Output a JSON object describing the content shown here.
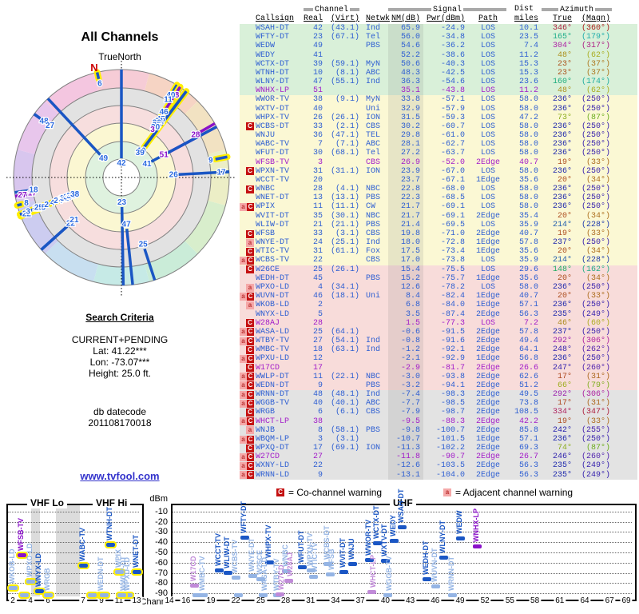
{
  "radar": {
    "title": "All Channels",
    "orientation_label": "TrueNorth",
    "north_marker": "N",
    "ring_hues": [
      "#f6ccd6",
      "#f6d4c4",
      "#f2e2c2",
      "#eceec6",
      "#d8eecc",
      "#caecd8",
      "#c6eae6",
      "#c8dff0",
      "#ccccf0",
      "#d8c6ee",
      "#e8c6ec",
      "#f4c6e0"
    ],
    "ring_fills": [
      "#e2e2e2",
      "#f7dede",
      "#fbf7d2",
      "#dff2df",
      "#ffffff"
    ]
  },
  "criteria": {
    "heading": "Search Criteria",
    "mode": "CURRENT+PENDING",
    "lat": "Lat: 41.22***",
    "lon": "Lon: -73.07***",
    "height": "Height: 25.0 ft.",
    "db_label": "db datecode",
    "db_code": "201108170018"
  },
  "link_text": "www.tvfool.com",
  "table_header": {
    "channel_group": "Channel",
    "signal_group": "Signal",
    "dist_group": "Dist",
    "azimuth_group": "Azimuth",
    "callsign": "Callsign",
    "real": "Real",
    "virt": "(Virt)",
    "netwk": "Netwk",
    "nm": "NM(dB)",
    "pwr": "Pwr(dBm)",
    "path": "Path",
    "miles": "miles",
    "true": "True",
    "magn": "(Magn)"
  },
  "legend": {
    "co_badge": "C",
    "co_text": "= Co-channel warning",
    "adj_badge": "a",
    "adj_text": "= Adjacent channel warning"
  },
  "colors": {
    "blue_text": "#2d5ed2",
    "analog_text": "#a21cc9",
    "bar_dark": "#1a56c4",
    "bar_light": "#94b4e4",
    "bar_analog_dark": "#8a11c9",
    "bar_analog_light": "#c08ad8",
    "highlight_yellow": "#ffee00",
    "row_green": "#d9f0d9",
    "row_yellow": "#fbf8d4",
    "row_pink": "#f8dcda",
    "row_gray": "#e3e3e3",
    "marker_co_bg": "#c41111",
    "marker_adj_bg": "#f5a8a8"
  },
  "chart_data": {
    "type": "table",
    "columns": [
      "callsign",
      "real_ch",
      "virt_ch",
      "network",
      "nm_db",
      "pwr_dbm",
      "path",
      "dist_miles",
      "azimuth_true_deg",
      "azimuth_magn_deg",
      "warning_marker",
      "is_analog",
      "signal_band"
    ],
    "stations": [
      [
        "WSAH-DT",
        42,
        "(43.1)",
        "Ind",
        "65.9",
        "-24.9",
        "LOS",
        "10.1",
        346,
        360,
        "",
        0,
        "green"
      ],
      [
        "WFTY-DT",
        23,
        "(67.1)",
        "Tel",
        "56.0",
        "-34.8",
        "LOS",
        "23.5",
        165,
        179,
        "",
        0,
        "green"
      ],
      [
        "WEDW",
        49,
        "",
        "PBS",
        "54.6",
        "-36.2",
        "LOS",
        "7.4",
        304,
        317,
        "",
        0,
        "green"
      ],
      [
        "WEDY",
        41,
        "",
        "",
        "52.2",
        "-38.6",
        "LOS",
        "11.2",
        48,
        62,
        "",
        0,
        "green"
      ],
      [
        "WCTX-DT",
        39,
        "(59.1)",
        "MyN",
        "50.6",
        "-40.3",
        "LOS",
        "15.3",
        23,
        37,
        "",
        0,
        "green"
      ],
      [
        "WTNH-DT",
        10,
        "(8.1)",
        "ABC",
        "48.3",
        "-42.5",
        "LOS",
        "15.3",
        23,
        37,
        "",
        0,
        "green"
      ],
      [
        "WLNY-DT",
        47,
        "(55.1)",
        "Ind",
        "36.3",
        "-54.6",
        "LOS",
        "23.6",
        160,
        174,
        "",
        0,
        "green"
      ],
      [
        "WNHX-LP",
        51,
        "",
        "",
        "35.1",
        "-43.8",
        "LOS",
        "11.2",
        48,
        62,
        "",
        1,
        "green"
      ],
      [
        "WWOR-TV",
        38,
        "(9.1)",
        "MyN",
        "33.8",
        "-57.1",
        "LOS",
        "58.0",
        236,
        250,
        "",
        0,
        "yellow"
      ],
      [
        "WXTV-DT",
        40,
        "",
        "Uni",
        "32.9",
        "-57.9",
        "LOS",
        "58.0",
        236,
        250,
        "",
        0,
        "yellow"
      ],
      [
        "WHPX-TV",
        26,
        "(26.1)",
        "ION",
        "31.5",
        "-59.3",
        "LOS",
        "47.2",
        73,
        87,
        "",
        0,
        "yellow"
      ],
      [
        "WCBS-DT",
        33,
        "(2.1)",
        "CBS",
        "30.2",
        "-60.7",
        "LOS",
        "58.0",
        236,
        250,
        "C",
        0,
        "yellow"
      ],
      [
        "WNJU",
        36,
        "(47.1)",
        "TEL",
        "29.8",
        "-61.0",
        "LOS",
        "58.0",
        236,
        250,
        "",
        0,
        "yellow"
      ],
      [
        "WABC-TV",
        7,
        "(7.1)",
        "ABC",
        "28.1",
        "-62.7",
        "LOS",
        "58.0",
        236,
        250,
        "",
        0,
        "yellow"
      ],
      [
        "WFUT-DT",
        30,
        "(68.1)",
        "Tel",
        "27.2",
        "-63.7",
        "LOS",
        "58.0",
        236,
        250,
        "",
        0,
        "yellow"
      ],
      [
        "WFSB-TV",
        3,
        "",
        "CBS",
        "26.9",
        "-52.0",
        "2Edge",
        "40.7",
        19,
        33,
        "",
        1,
        "yellow"
      ],
      [
        "WPXN-TV",
        31,
        "(31.1)",
        "ION",
        "23.9",
        "-67.0",
        "LOS",
        "58.0",
        236,
        250,
        "C",
        0,
        "yellow"
      ],
      [
        "WCCT-TV",
        20,
        "",
        "",
        "23.7",
        "-67.1",
        "1Edge",
        "35.6",
        20,
        34,
        "",
        0,
        "yellow"
      ],
      [
        "WNBC",
        28,
        "(4.1)",
        "NBC",
        "22.8",
        "-68.0",
        "LOS",
        "58.0",
        236,
        250,
        "C",
        0,
        "yellow"
      ],
      [
        "WNET-DT",
        13,
        "(13.1)",
        "PBS",
        "22.3",
        "-68.5",
        "LOS",
        "58.0",
        236,
        250,
        "",
        0,
        "yellow"
      ],
      [
        "WPIX",
        11,
        "(11.1)",
        "CW",
        "21.7",
        "-69.1",
        "LOS",
        "58.0",
        236,
        250,
        "aC",
        0,
        "yellow"
      ],
      [
        "WVIT-DT",
        35,
        "(30.1)",
        "NBC",
        "21.7",
        "-69.1",
        "2Edge",
        "35.4",
        20,
        34,
        "",
        0,
        "yellow"
      ],
      [
        "WLIW-DT",
        21,
        "(21.1)",
        "PBS",
        "21.4",
        "-69.5",
        "LOS",
        "35.9",
        214,
        228,
        "",
        0,
        "yellow"
      ],
      [
        "WFSB",
        33,
        "(3.1)",
        "CBS",
        "19.8",
        "-71.0",
        "2Edge",
        "40.7",
        19,
        33,
        "C",
        0,
        "yellow"
      ],
      [
        "WNYE-DT",
        24,
        "(25.1)",
        "Ind",
        "18.0",
        "-72.8",
        "1Edge",
        "57.8",
        237,
        250,
        "a",
        0,
        "yellow"
      ],
      [
        "WTIC-TV",
        31,
        "(61.1)",
        "Fox",
        "17.5",
        "-73.4",
        "1Edge",
        "35.6",
        20,
        34,
        "C",
        0,
        "yellow"
      ],
      [
        "WCBS-TV",
        22,
        "",
        "CBS",
        "17.0",
        "-73.8",
        "LOS",
        "35.9",
        214,
        228,
        "aC",
        0,
        "yellow"
      ],
      [
        "W26CE",
        25,
        "(26.1)",
        "",
        "15.4",
        "-75.5",
        "LOS",
        "29.6",
        148,
        162,
        "C",
        0,
        "pink"
      ],
      [
        "WEDH-DT",
        45,
        "",
        "PBS",
        "15.2",
        "-75.7",
        "1Edge",
        "35.6",
        20,
        34,
        "",
        0,
        "pink"
      ],
      [
        "WPXO-LD",
        4,
        "(34.1)",
        "",
        "12.6",
        "-78.2",
        "LOS",
        "58.0",
        236,
        250,
        "a",
        0,
        "pink"
      ],
      [
        "WUVN-DT",
        46,
        "(18.1)",
        "Uni",
        "8.4",
        "-82.4",
        "1Edge",
        "40.7",
        20,
        33,
        "aC",
        0,
        "pink"
      ],
      [
        "WKOB-LD",
        2,
        "",
        "",
        "6.8",
        "-84.0",
        "1Edge",
        "57.1",
        236,
        250,
        "a",
        0,
        "pink"
      ],
      [
        "WNYX-LD",
        5,
        "",
        "",
        "3.5",
        "-87.4",
        "2Edge",
        "56.3",
        235,
        249,
        "",
        0,
        "pink"
      ],
      [
        "W28AJ",
        28,
        "",
        "",
        "1.5",
        "-77.3",
        "LOS",
        "7.2",
        46,
        60,
        "C",
        1,
        "pink"
      ],
      [
        "WASA-LD",
        25,
        "(64.1)",
        "",
        "-0.6",
        "-91.5",
        "2Edge",
        "57.8",
        237,
        250,
        "aC",
        0,
        "pink"
      ],
      [
        "WTBY-TV",
        27,
        "(54.1)",
        "Ind",
        "-0.8",
        "-91.6",
        "2Edge",
        "49.4",
        292,
        306,
        "aC",
        0,
        "pink"
      ],
      [
        "WMBC-TV",
        18,
        "(63.1)",
        "Ind",
        "-1.2",
        "-92.1",
        "2Edge",
        "64.1",
        248,
        262,
        "C",
        0,
        "pink"
      ],
      [
        "WPXU-LD",
        12,
        "",
        "",
        "-2.1",
        "-92.9",
        "1Edge",
        "56.8",
        236,
        250,
        "aC",
        0,
        "pink"
      ],
      [
        "W17CD",
        17,
        "",
        "",
        "-2.9",
        "-81.7",
        "2Edge",
        "26.6",
        247,
        260,
        "C",
        1,
        "pink"
      ],
      [
        "WWLP-DT",
        11,
        "(22.1)",
        "NBC",
        "-3.0",
        "-93.8",
        "2Edge",
        "62.6",
        17,
        31,
        "aC",
        0,
        "pink"
      ],
      [
        "WEDN-DT",
        9,
        "",
        "PBS",
        "-3.2",
        "-94.1",
        "2Edge",
        "51.2",
        66,
        79,
        "aC",
        0,
        "pink"
      ],
      [
        "WRNN-DT",
        48,
        "(48.1)",
        "Ind",
        "-7.4",
        "-98.3",
        "2Edge",
        "49.5",
        292,
        306,
        "aC",
        0,
        "gray"
      ],
      [
        "WGGB-TV",
        40,
        "(40.1)",
        "ABC",
        "-7.7",
        "-98.5",
        "2Edge",
        "73.8",
        17,
        31,
        "aC",
        0,
        "gray"
      ],
      [
        "WRGB",
        6,
        "(6.1)",
        "CBS",
        "-7.9",
        "-98.7",
        "2Edge",
        "108.5",
        334,
        347,
        "C",
        0,
        "gray"
      ],
      [
        "WHCT-LP",
        38,
        "",
        "",
        "-9.5",
        "-88.3",
        "2Edge",
        "42.2",
        19,
        33,
        "aC",
        1,
        "gray"
      ],
      [
        "WNJB",
        8,
        "(58.1)",
        "PBS",
        "-9.8",
        "-100.7",
        "2Edge",
        "85.8",
        242,
        255,
        "a",
        0,
        "gray"
      ],
      [
        "WBQM-LP",
        3,
        "(3.1)",
        "",
        "-10.7",
        "-101.5",
        "1Edge",
        "57.1",
        236,
        250,
        "aC",
        0,
        "gray"
      ],
      [
        "WPXQ-DT",
        17,
        "(69.1)",
        "ION",
        "-11.3",
        "-102.2",
        "2Edge",
        "69.3",
        74,
        87,
        "C",
        0,
        "gray"
      ],
      [
        "W27CD",
        27,
        "",
        "",
        "-11.8",
        "-90.7",
        "2Edge",
        "26.7",
        246,
        260,
        "aC",
        1,
        "gray"
      ],
      [
        "WXNY-LD",
        22,
        "",
        "",
        "-12.6",
        "-103.5",
        "2Edge",
        "56.3",
        235,
        249,
        "aC",
        0,
        "gray"
      ],
      [
        "WRNN-LD",
        9,
        "",
        "",
        "-13.1",
        "-104.0",
        "2Edge",
        "56.3",
        235,
        249,
        "aC",
        0,
        "gray"
      ]
    ],
    "signal_chart": {
      "ylabel": "dBm",
      "xlabel": "Channel",
      "dbm_ticks": [
        -10,
        -20,
        -30,
        -40,
        -50,
        -60,
        -70,
        -80,
        -90
      ],
      "vhf_lo_label": "VHF Lo",
      "vhf_hi_label": "VHF Hi",
      "uhf_label": "UHF",
      "vhf_ticks": [
        2,
        4,
        6,
        7,
        9,
        11,
        13
      ],
      "uhf_ticks": [
        14,
        16,
        19,
        22,
        25,
        28,
        31,
        34,
        37,
        40,
        43,
        46,
        49,
        52,
        55,
        58,
        61,
        64,
        67,
        69
      ]
    }
  }
}
